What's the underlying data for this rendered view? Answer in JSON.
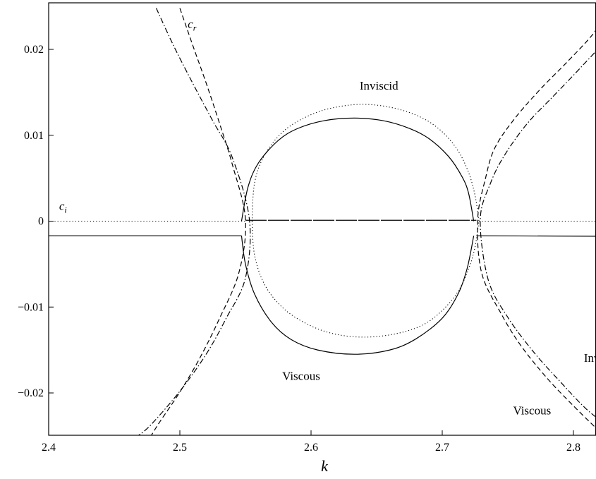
{
  "chart_data": {
    "type": "line",
    "title": "",
    "xlabel": "k",
    "ylabel": "",
    "xlim": [
      2.4,
      2.895
    ],
    "ylim": [
      -0.025,
      0.025
    ],
    "grid": false,
    "xticks": [
      2.4,
      2.5,
      2.6,
      2.7,
      2.8
    ],
    "xtick_labels": [
      "2.4",
      "2.5",
      "2.6",
      "2.7",
      "2.8"
    ],
    "yticks": [
      0.02,
      0.01,
      0,
      -0.01,
      -0.02
    ],
    "ytick_labels": [
      "0.02",
      "0.01",
      "0",
      "−0.01",
      "−0.02"
    ],
    "annotations": [
      {
        "text": "c",
        "sub": "r",
        "x": 2.506,
        "y": 0.0225,
        "italic": true
      },
      {
        "text": "c",
        "sub": "i",
        "x": 2.408,
        "y": 0.0013,
        "italic": true
      },
      {
        "text": "Inviscid",
        "x": 2.637,
        "y": 0.0153,
        "italic": false
      },
      {
        "text": "Viscous",
        "x": 2.578,
        "y": -0.0185,
        "italic": false
      },
      {
        "text": "Inviscid",
        "x": 2.808,
        "y": -0.0164,
        "italic": false
      },
      {
        "text": "Viscous",
        "x": 2.754,
        "y": -0.0225,
        "italic": false
      }
    ],
    "series": [
      {
        "role": "c_i viscous (outside)",
        "style": "solid",
        "segments": [
          [
            [
              2.4,
              -0.0017
            ],
            [
              2.547,
              -0.0017
            ]
          ],
          [
            [
              2.726,
              -0.0017
            ],
            [
              2.895,
              -0.0018
            ]
          ]
        ]
      },
      {
        "role": "c_i inviscid (zero)",
        "style": "dotted",
        "segments": [
          [
            [
              2.4,
              0.0
            ],
            [
              2.55,
              0.0
            ]
          ],
          [
            [
              2.728,
              0.0
            ],
            [
              2.895,
              0.0
            ]
          ]
        ]
      },
      {
        "role": "c_i viscous ellipse upper",
        "style": "solid",
        "segments": [
          [
            [
              2.547,
              0.0
            ],
            [
              2.552,
              0.004
            ],
            [
              2.56,
              0.0068
            ],
            [
              2.575,
              0.0094
            ],
            [
              2.59,
              0.0108
            ],
            [
              2.61,
              0.0117
            ],
            [
              2.633,
              0.012
            ],
            [
              2.655,
              0.0117
            ],
            [
              2.675,
              0.0108
            ],
            [
              2.69,
              0.0096
            ],
            [
              2.705,
              0.0075
            ],
            [
              2.715,
              0.0052
            ],
            [
              2.72,
              0.0033
            ],
            [
              2.724,
              0.0
            ]
          ]
        ]
      },
      {
        "role": "c_i viscous ellipse lower",
        "style": "solid",
        "segments": [
          [
            [
              2.547,
              -0.0017
            ],
            [
              2.55,
              -0.005
            ],
            [
              2.557,
              -0.0085
            ],
            [
              2.57,
              -0.0118
            ],
            [
              2.585,
              -0.0138
            ],
            [
              2.605,
              -0.015
            ],
            [
              2.633,
              -0.0155
            ],
            [
              2.66,
              -0.015
            ],
            [
              2.68,
              -0.0137
            ],
            [
              2.7,
              -0.0113
            ],
            [
              2.712,
              -0.0085
            ],
            [
              2.719,
              -0.0055
            ],
            [
              2.724,
              -0.0017
            ]
          ]
        ]
      },
      {
        "role": "c_i inviscid ellipse upper",
        "style": "dotted",
        "segments": [
          [
            [
              2.555,
              0.0
            ],
            [
              2.557,
              0.0045
            ],
            [
              2.565,
              0.0078
            ],
            [
              2.58,
              0.0106
            ],
            [
              2.6,
              0.0124
            ],
            [
              2.62,
              0.0133
            ],
            [
              2.642,
              0.0136
            ],
            [
              2.665,
              0.0131
            ],
            [
              2.685,
              0.012
            ],
            [
              2.7,
              0.0104
            ],
            [
              2.712,
              0.0082
            ],
            [
              2.72,
              0.0057
            ],
            [
              2.725,
              0.003
            ],
            [
              2.728,
              0.0
            ]
          ]
        ]
      },
      {
        "role": "c_i inviscid ellipse lower",
        "style": "dotted",
        "segments": [
          [
            [
              2.555,
              0.0
            ],
            [
              2.557,
              -0.004
            ],
            [
              2.565,
              -0.0075
            ],
            [
              2.58,
              -0.0103
            ],
            [
              2.6,
              -0.0122
            ],
            [
              2.62,
              -0.0132
            ],
            [
              2.642,
              -0.0135
            ],
            [
              2.665,
              -0.0131
            ],
            [
              2.685,
              -0.0121
            ],
            [
              2.7,
              -0.0104
            ],
            [
              2.712,
              -0.0082
            ],
            [
              2.72,
              -0.0056
            ],
            [
              2.725,
              -0.003
            ],
            [
              2.728,
              0.0
            ]
          ]
        ]
      },
      {
        "role": "c_r zero line inside",
        "style": "longdash",
        "segments": [
          [
            [
              2.55,
              0.0001
            ],
            [
              2.726,
              0.0001
            ]
          ]
        ]
      },
      {
        "role": "c_r viscous left",
        "style": "dashed",
        "segments": [
          [
            [
              2.5,
              0.0248
            ],
            [
              2.51,
              0.0204
            ],
            [
              2.52,
              0.0161
            ],
            [
              2.53,
              0.0115
            ],
            [
              2.54,
              0.0066
            ],
            [
              2.55,
              0.0002
            ],
            [
              2.545,
              -0.006
            ],
            [
              2.53,
              -0.0114
            ],
            [
              2.515,
              -0.016
            ],
            [
              2.5,
              -0.0199
            ],
            [
              2.485,
              -0.0233
            ],
            [
              2.478,
              -0.025
            ]
          ]
        ]
      },
      {
        "role": "c_r inviscid left",
        "style": "dashdot",
        "segments": [
          [
            [
              2.482,
              0.0248
            ],
            [
              2.495,
              0.0205
            ],
            [
              2.51,
              0.016
            ],
            [
              2.525,
              0.0117
            ],
            [
              2.54,
              0.0074
            ],
            [
              2.553,
              0.0002
            ],
            [
              2.55,
              -0.0066
            ],
            [
              2.535,
              -0.0114
            ],
            [
              2.52,
              -0.0155
            ],
            [
              2.5,
              -0.0198
            ],
            [
              2.478,
              -0.0237
            ],
            [
              2.468,
              -0.025
            ]
          ]
        ]
      },
      {
        "role": "c_r viscous right",
        "style": "dashed",
        "segments": [
          [
            [
              2.828,
              0.0248
            ],
            [
              2.815,
              0.0218
            ],
            [
              2.795,
              0.0185
            ],
            [
              2.775,
              0.0154
            ],
            [
              2.755,
              0.0119
            ],
            [
              2.74,
              0.0085
            ],
            [
              2.733,
              0.005
            ],
            [
              2.727,
              0.0002
            ],
            [
              2.73,
              -0.006
            ],
            [
              2.745,
              -0.0108
            ],
            [
              2.76,
              -0.0145
            ],
            [
              2.78,
              -0.0183
            ],
            [
              2.8,
              -0.0215
            ],
            [
              2.82,
              -0.0245
            ],
            [
              2.824,
              -0.025
            ]
          ]
        ]
      },
      {
        "role": "c_r inviscid right",
        "style": "dashdot",
        "segments": [
          [
            [
              2.84,
              0.0248
            ],
            [
              2.825,
              0.0212
            ],
            [
              2.805,
              0.0178
            ],
            [
              2.785,
              0.0146
            ],
            [
              2.765,
              0.0114
            ],
            [
              2.748,
              0.0078
            ],
            [
              2.737,
              0.0045
            ],
            [
              2.729,
              0.0002
            ],
            [
              2.735,
              -0.0068
            ],
            [
              2.75,
              -0.0112
            ],
            [
              2.77,
              -0.0153
            ],
            [
              2.79,
              -0.0187
            ],
            [
              2.81,
              -0.0219
            ],
            [
              2.83,
              -0.0243
            ],
            [
              2.836,
              -0.025
            ]
          ]
        ]
      }
    ]
  }
}
